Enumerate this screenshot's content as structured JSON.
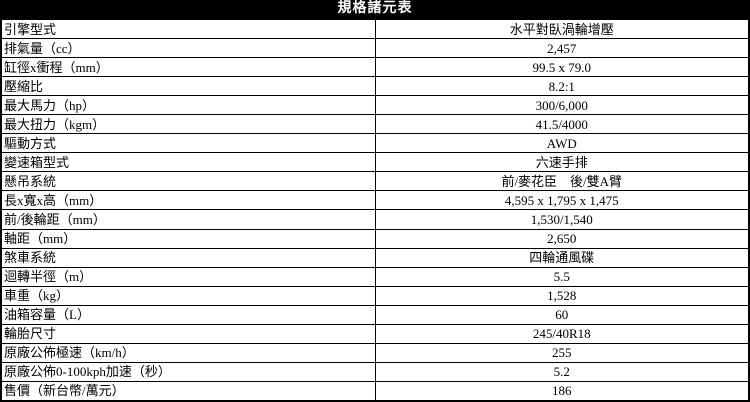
{
  "title": "規格諸元表",
  "colors": {
    "title_bg": "#000000",
    "title_fg": "#ffffff",
    "border": "#000000",
    "background": "#ffffff",
    "text": "#000000"
  },
  "table": {
    "rows": [
      {
        "label": "引擎型式",
        "value": "水平對臥渦輪增壓"
      },
      {
        "label": "排氣量（cc）",
        "value": "2,457"
      },
      {
        "label": "缸徑x衝程（mm）",
        "value": "99.5 x 79.0"
      },
      {
        "label": "壓縮比",
        "value": "8.2:1"
      },
      {
        "label": "最大馬力（hp）",
        "value": "300/6,000"
      },
      {
        "label": "最大扭力（kgm）",
        "value": "41.5/4000"
      },
      {
        "label": "驅動方式",
        "value": "AWD"
      },
      {
        "label": "變速箱型式",
        "value": "六速手排"
      },
      {
        "label": "懸吊系統",
        "value": "前/麥花臣　後/雙A臂"
      },
      {
        "label": "長x寬x高（mm）",
        "value": "4,595 x 1,795 x 1,475"
      },
      {
        "label": "前/後輪距（mm）",
        "value": "1,530/1,540"
      },
      {
        "label": "軸距（mm）",
        "value": "2,650"
      },
      {
        "label": "煞車系統",
        "value": "四輪通風碟"
      },
      {
        "label": "迴轉半徑（m）",
        "value": "5.5"
      },
      {
        "label": "車重（kg）",
        "value": "1,528"
      },
      {
        "label": "油箱容量（L）",
        "value": "60"
      },
      {
        "label": "輪胎尺寸",
        "value": "245/40R18"
      },
      {
        "label": "原廠公佈極速（km/h）",
        "value": "255"
      },
      {
        "label": "原廠公佈0-100kph加速（秒）",
        "value": "5.2"
      },
      {
        "label": "售價（新台幣/萬元）",
        "value": "186"
      }
    ]
  }
}
